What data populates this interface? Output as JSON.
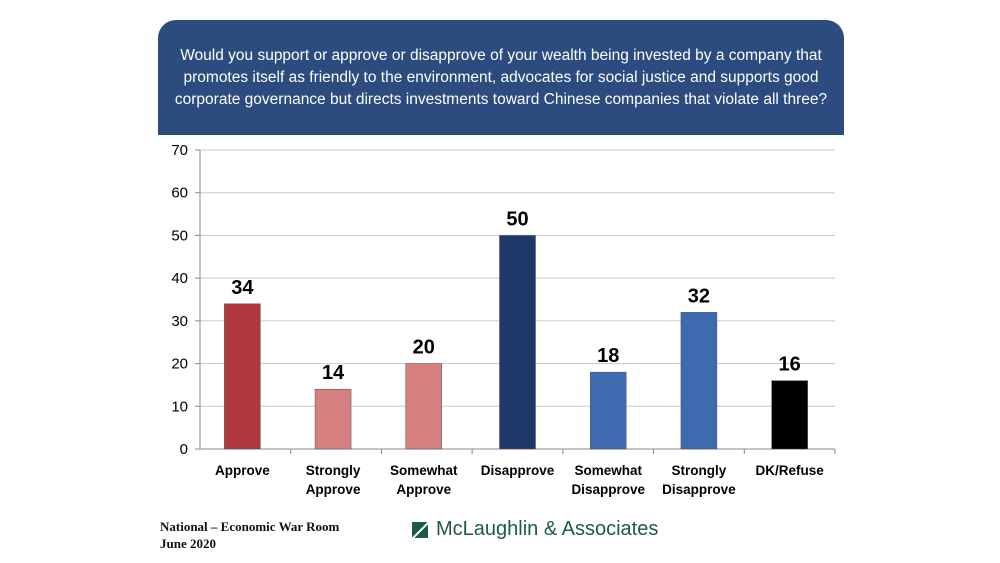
{
  "chart_data": {
    "type": "bar",
    "title": "Would you support or approve or disapprove of your wealth being invested by a company that promotes itself as friendly to the environment, advocates for social justice and supports good corporate governance but directs investments toward Chinese companies that violate all three?",
    "categories": [
      [
        "Approve"
      ],
      [
        "Strongly",
        "Approve"
      ],
      [
        "Somewhat",
        "Approve"
      ],
      [
        "Disapprove"
      ],
      [
        "Somewhat",
        "Disapprove"
      ],
      [
        "Strongly",
        "Disapprove"
      ],
      [
        "DK/Refuse"
      ]
    ],
    "values": [
      34,
      14,
      20,
      50,
      18,
      32,
      16
    ],
    "colors": [
      "#b0383e",
      "#d47f80",
      "#d47f80",
      "#1e3869",
      "#3e6bb0",
      "#3e6bb0",
      "#000000"
    ],
    "ylim": [
      0,
      70
    ],
    "yticks": [
      0,
      10,
      20,
      30,
      40,
      50,
      60,
      70
    ],
    "grid": true,
    "xlabel": "",
    "ylabel": ""
  },
  "footer": {
    "line1": "National – Economic War Room",
    "line2": "June 2020",
    "logo": "McLaughlin & Associates"
  }
}
